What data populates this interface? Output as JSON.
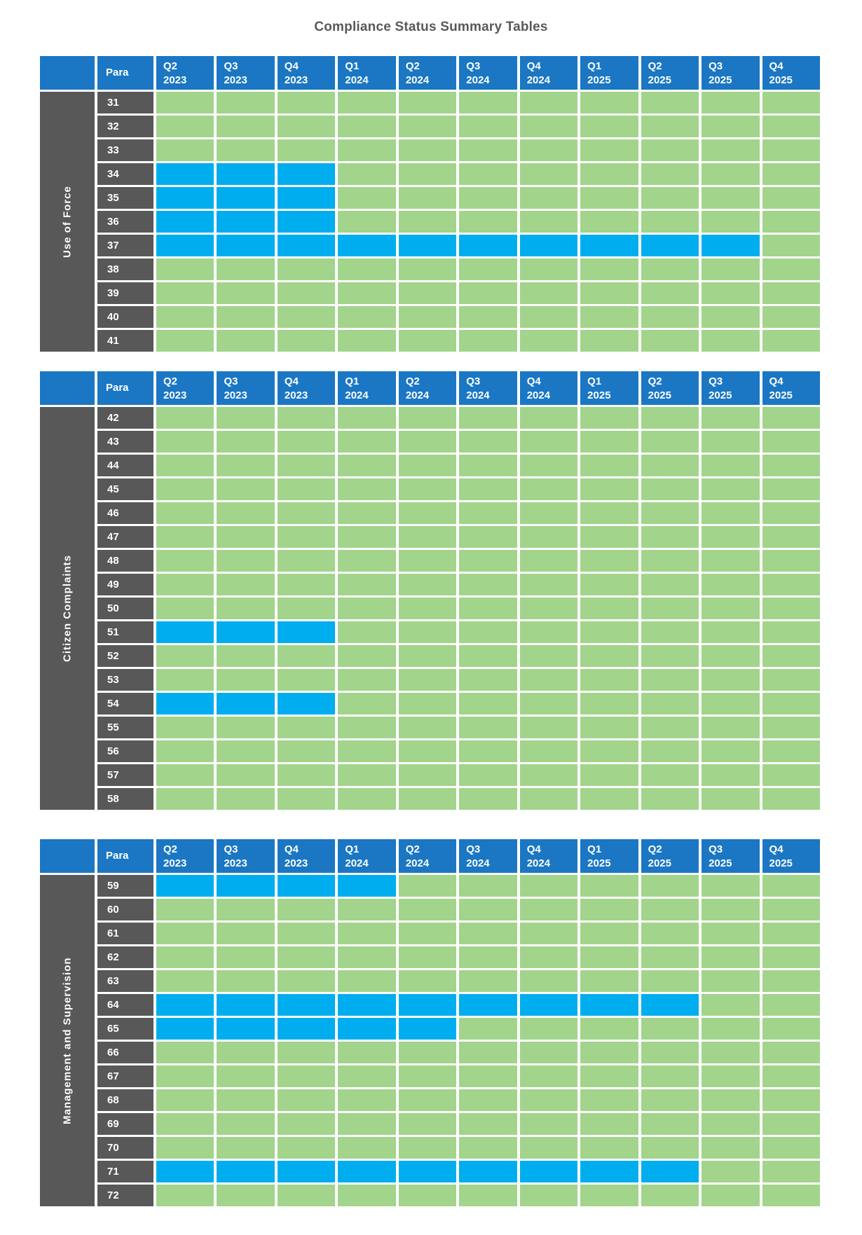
{
  "title": "Compliance Status Summary Tables",
  "colors": {
    "header_blue": "#1b77c3",
    "row_label_gray": "#585858",
    "status_green": "#a2d48c",
    "status_blue": "#00aeef",
    "title_gray": "#595959"
  },
  "chart_data": {
    "type": "heatmap",
    "title": "Compliance Status Summary Tables",
    "row_header_label": "Para",
    "x_labels": [
      {
        "quarter": "Q2",
        "year": "2023"
      },
      {
        "quarter": "Q3",
        "year": "2023"
      },
      {
        "quarter": "Q4",
        "year": "2023"
      },
      {
        "quarter": "Q1",
        "year": "2024"
      },
      {
        "quarter": "Q2",
        "year": "2024"
      },
      {
        "quarter": "Q3",
        "year": "2024"
      },
      {
        "quarter": "Q4",
        "year": "2024"
      },
      {
        "quarter": "Q1",
        "year": "2025"
      },
      {
        "quarter": "Q2",
        "year": "2025"
      },
      {
        "quarter": "Q3",
        "year": "2025"
      },
      {
        "quarter": "Q4",
        "year": "2025"
      }
    ],
    "status_colors": {
      "G": "#a2d48c",
      "B": "#00aeef"
    },
    "groups": [
      {
        "name": "Use of Force",
        "rows": [
          {
            "para": "31",
            "statuses": [
              "G",
              "G",
              "G",
              "G",
              "G",
              "G",
              "G",
              "G",
              "G",
              "G",
              "G"
            ]
          },
          {
            "para": "32",
            "statuses": [
              "G",
              "G",
              "G",
              "G",
              "G",
              "G",
              "G",
              "G",
              "G",
              "G",
              "G"
            ]
          },
          {
            "para": "33",
            "statuses": [
              "G",
              "G",
              "G",
              "G",
              "G",
              "G",
              "G",
              "G",
              "G",
              "G",
              "G"
            ]
          },
          {
            "para": "34",
            "statuses": [
              "B",
              "B",
              "B",
              "G",
              "G",
              "G",
              "G",
              "G",
              "G",
              "G",
              "G"
            ]
          },
          {
            "para": "35",
            "statuses": [
              "B",
              "B",
              "B",
              "G",
              "G",
              "G",
              "G",
              "G",
              "G",
              "G",
              "G"
            ]
          },
          {
            "para": "36",
            "statuses": [
              "B",
              "B",
              "B",
              "G",
              "G",
              "G",
              "G",
              "G",
              "G",
              "G",
              "G"
            ]
          },
          {
            "para": "37",
            "statuses": [
              "B",
              "B",
              "B",
              "B",
              "B",
              "B",
              "B",
              "B",
              "B",
              "B",
              "G"
            ]
          },
          {
            "para": "38",
            "statuses": [
              "G",
              "G",
              "G",
              "G",
              "G",
              "G",
              "G",
              "G",
              "G",
              "G",
              "G"
            ]
          },
          {
            "para": "39",
            "statuses": [
              "G",
              "G",
              "G",
              "G",
              "G",
              "G",
              "G",
              "G",
              "G",
              "G",
              "G"
            ]
          },
          {
            "para": "40",
            "statuses": [
              "G",
              "G",
              "G",
              "G",
              "G",
              "G",
              "G",
              "G",
              "G",
              "G",
              "G"
            ]
          },
          {
            "para": "41",
            "statuses": [
              "G",
              "G",
              "G",
              "G",
              "G",
              "G",
              "G",
              "G",
              "G",
              "G",
              "G"
            ]
          }
        ]
      },
      {
        "name": "Citizen Complaints",
        "rows": [
          {
            "para": "42",
            "statuses": [
              "G",
              "G",
              "G",
              "G",
              "G",
              "G",
              "G",
              "G",
              "G",
              "G",
              "G"
            ]
          },
          {
            "para": "43",
            "statuses": [
              "G",
              "G",
              "G",
              "G",
              "G",
              "G",
              "G",
              "G",
              "G",
              "G",
              "G"
            ]
          },
          {
            "para": "44",
            "statuses": [
              "G",
              "G",
              "G",
              "G",
              "G",
              "G",
              "G",
              "G",
              "G",
              "G",
              "G"
            ]
          },
          {
            "para": "45",
            "statuses": [
              "G",
              "G",
              "G",
              "G",
              "G",
              "G",
              "G",
              "G",
              "G",
              "G",
              "G"
            ]
          },
          {
            "para": "46",
            "statuses": [
              "G",
              "G",
              "G",
              "G",
              "G",
              "G",
              "G",
              "G",
              "G",
              "G",
              "G"
            ]
          },
          {
            "para": "47",
            "statuses": [
              "G",
              "G",
              "G",
              "G",
              "G",
              "G",
              "G",
              "G",
              "G",
              "G",
              "G"
            ]
          },
          {
            "para": "48",
            "statuses": [
              "G",
              "G",
              "G",
              "G",
              "G",
              "G",
              "G",
              "G",
              "G",
              "G",
              "G"
            ]
          },
          {
            "para": "49",
            "statuses": [
              "G",
              "G",
              "G",
              "G",
              "G",
              "G",
              "G",
              "G",
              "G",
              "G",
              "G"
            ]
          },
          {
            "para": "50",
            "statuses": [
              "G",
              "G",
              "G",
              "G",
              "G",
              "G",
              "G",
              "G",
              "G",
              "G",
              "G"
            ]
          },
          {
            "para": "51",
            "statuses": [
              "B",
              "B",
              "B",
              "G",
              "G",
              "G",
              "G",
              "G",
              "G",
              "G",
              "G"
            ]
          },
          {
            "para": "52",
            "statuses": [
              "G",
              "G",
              "G",
              "G",
              "G",
              "G",
              "G",
              "G",
              "G",
              "G",
              "G"
            ]
          },
          {
            "para": "53",
            "statuses": [
              "G",
              "G",
              "G",
              "G",
              "G",
              "G",
              "G",
              "G",
              "G",
              "G",
              "G"
            ]
          },
          {
            "para": "54",
            "statuses": [
              "B",
              "B",
              "B",
              "G",
              "G",
              "G",
              "G",
              "G",
              "G",
              "G",
              "G"
            ]
          },
          {
            "para": "55",
            "statuses": [
              "G",
              "G",
              "G",
              "G",
              "G",
              "G",
              "G",
              "G",
              "G",
              "G",
              "G"
            ]
          },
          {
            "para": "56",
            "statuses": [
              "G",
              "G",
              "G",
              "G",
              "G",
              "G",
              "G",
              "G",
              "G",
              "G",
              "G"
            ]
          },
          {
            "para": "57",
            "statuses": [
              "G",
              "G",
              "G",
              "G",
              "G",
              "G",
              "G",
              "G",
              "G",
              "G",
              "G"
            ]
          },
          {
            "para": "58",
            "statuses": [
              "G",
              "G",
              "G",
              "G",
              "G",
              "G",
              "G",
              "G",
              "G",
              "G",
              "G"
            ]
          }
        ]
      },
      {
        "name": "Management and Supervision",
        "rows": [
          {
            "para": "59",
            "statuses": [
              "B",
              "B",
              "B",
              "B",
              "G",
              "G",
              "G",
              "G",
              "G",
              "G",
              "G"
            ]
          },
          {
            "para": "60",
            "statuses": [
              "G",
              "G",
              "G",
              "G",
              "G",
              "G",
              "G",
              "G",
              "G",
              "G",
              "G"
            ]
          },
          {
            "para": "61",
            "statuses": [
              "G",
              "G",
              "G",
              "G",
              "G",
              "G",
              "G",
              "G",
              "G",
              "G",
              "G"
            ]
          },
          {
            "para": "62",
            "statuses": [
              "G",
              "G",
              "G",
              "G",
              "G",
              "G",
              "G",
              "G",
              "G",
              "G",
              "G"
            ]
          },
          {
            "para": "63",
            "statuses": [
              "G",
              "G",
              "G",
              "G",
              "G",
              "G",
              "G",
              "G",
              "G",
              "G",
              "G"
            ]
          },
          {
            "para": "64",
            "statuses": [
              "B",
              "B",
              "B",
              "B",
              "B",
              "B",
              "B",
              "B",
              "B",
              "G",
              "G"
            ]
          },
          {
            "para": "65",
            "statuses": [
              "B",
              "B",
              "B",
              "B",
              "B",
              "G",
              "G",
              "G",
              "G",
              "G",
              "G"
            ]
          },
          {
            "para": "66",
            "statuses": [
              "G",
              "G",
              "G",
              "G",
              "G",
              "G",
              "G",
              "G",
              "G",
              "G",
              "G"
            ]
          },
          {
            "para": "67",
            "statuses": [
              "G",
              "G",
              "G",
              "G",
              "G",
              "G",
              "G",
              "G",
              "G",
              "G",
              "G"
            ]
          },
          {
            "para": "68",
            "statuses": [
              "G",
              "G",
              "G",
              "G",
              "G",
              "G",
              "G",
              "G",
              "G",
              "G",
              "G"
            ]
          },
          {
            "para": "69",
            "statuses": [
              "G",
              "G",
              "G",
              "G",
              "G",
              "G",
              "G",
              "G",
              "G",
              "G",
              "G"
            ]
          },
          {
            "para": "70",
            "statuses": [
              "G",
              "G",
              "G",
              "G",
              "G",
              "G",
              "G",
              "G",
              "G",
              "G",
              "G"
            ]
          },
          {
            "para": "71",
            "statuses": [
              "B",
              "B",
              "B",
              "B",
              "B",
              "B",
              "B",
              "B",
              "B",
              "G",
              "G"
            ]
          },
          {
            "para": "72",
            "statuses": [
              "G",
              "G",
              "G",
              "G",
              "G",
              "G",
              "G",
              "G",
              "G",
              "G",
              "G"
            ]
          }
        ]
      }
    ]
  }
}
